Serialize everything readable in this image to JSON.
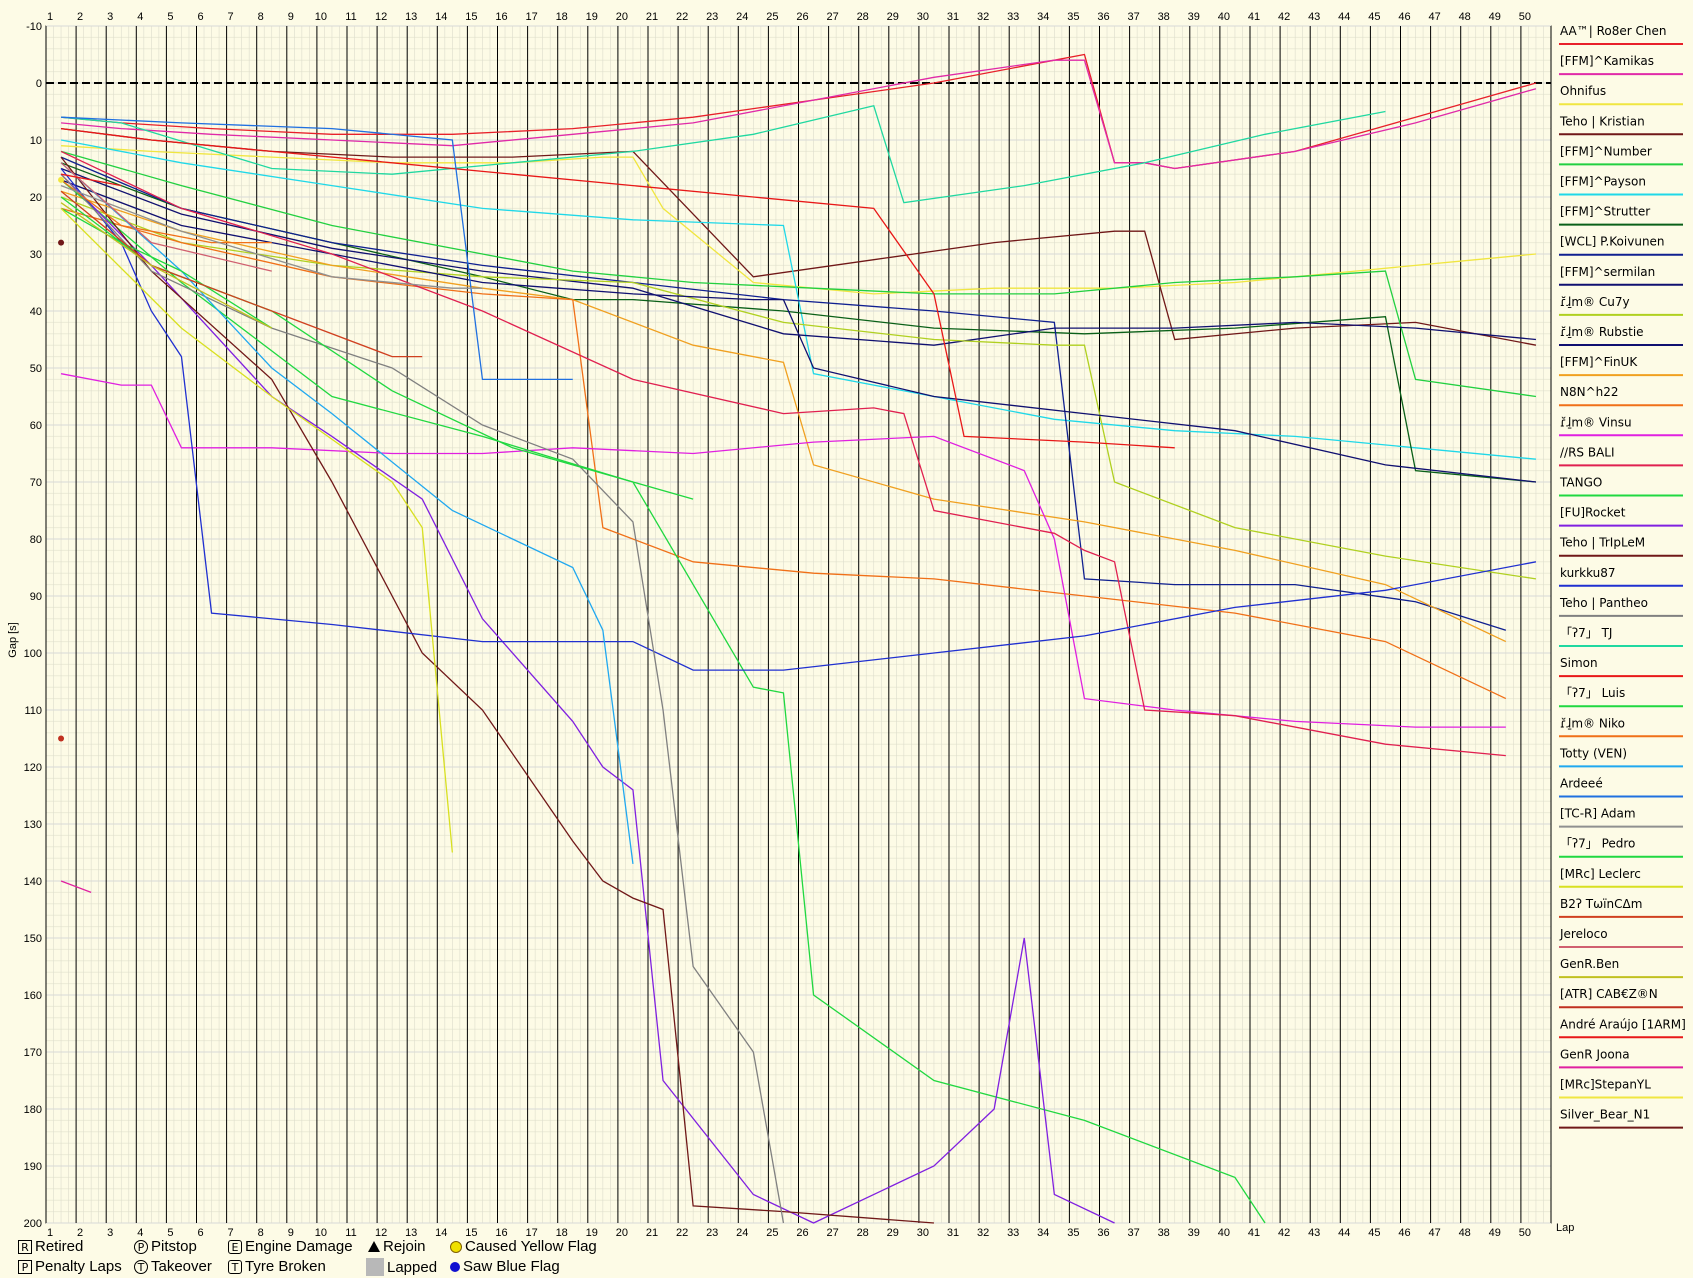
{
  "chart_data": {
    "type": "line",
    "title": "",
    "xlabel": "Lap",
    "ylabel": "Gap [s]",
    "xlim": [
      1,
      50
    ],
    "ylim": [
      -10,
      200
    ],
    "y_inverted": true,
    "x_ticks": [
      "1",
      "2",
      "3",
      "4",
      "5",
      "6",
      "7",
      "8",
      "9",
      "10",
      "11",
      "12",
      "13",
      "14",
      "15",
      "16",
      "17",
      "18",
      "19",
      "20",
      "21",
      "22",
      "23",
      "24",
      "25",
      "26",
      "27",
      "28",
      "29",
      "30",
      "31",
      "32",
      "33",
      "34",
      "35",
      "36",
      "37",
      "38",
      "39",
      "40",
      "41",
      "42",
      "43",
      "44",
      "45",
      "46",
      "47",
      "48",
      "49",
      "50"
    ],
    "y_ticks": [
      "-10",
      "0",
      "10",
      "20",
      "30",
      "40",
      "50",
      "60",
      "70",
      "80",
      "90",
      "100",
      "110",
      "120",
      "130",
      "140",
      "150",
      "160",
      "170",
      "180",
      "190",
      "200"
    ],
    "grid": true,
    "legend_position": "right",
    "series": [
      {
        "name": "AA™| Ro8er Chen",
        "color": "#e8202a",
        "x": [
          1,
          3,
          6,
          10,
          14,
          18,
          22,
          26,
          30,
          34,
          35,
          36,
          37,
          38,
          42,
          46,
          50
        ],
        "y": [
          6,
          7,
          8,
          9,
          9,
          8,
          6,
          3,
          0,
          -4,
          -5,
          14,
          14,
          15,
          12,
          6,
          0
        ]
      },
      {
        "name": "[FFM]^Kamikas",
        "color": "#e02aa8",
        "x": [
          1,
          3,
          6,
          10,
          14,
          18,
          22,
          26,
          30,
          34,
          35,
          36,
          37,
          38,
          42,
          46,
          50
        ],
        "y": [
          7,
          8,
          9,
          10,
          11,
          9,
          7,
          3,
          -1,
          -4,
          -4,
          14,
          14,
          15,
          12,
          7,
          1
        ]
      },
      {
        "name": "Ohnifus",
        "color": "#f0e640",
        "x": [
          1,
          4,
          8,
          12,
          16,
          19,
          20,
          21,
          24,
          28,
          32,
          36,
          40,
          44,
          48,
          50
        ],
        "y": [
          11,
          12,
          13,
          14,
          14,
          13,
          13,
          22,
          35,
          37,
          36,
          36,
          35,
          33,
          31,
          30
        ]
      },
      {
        "name": "Teho | Kristian",
        "color": "#701818",
        "x": [
          1,
          4,
          8,
          12,
          16,
          20,
          24,
          28,
          32,
          36,
          37,
          38,
          42,
          46,
          50
        ],
        "y": [
          8,
          10,
          12,
          13,
          13,
          12,
          34,
          31,
          28,
          26,
          26,
          45,
          43,
          42,
          46
        ]
      },
      {
        "name": "[FFM]^Number",
        "color": "#22d040",
        "x": [
          1,
          5,
          10,
          15,
          18,
          22,
          26,
          30,
          34,
          38,
          42,
          45,
          46,
          50
        ],
        "y": [
          12,
          18,
          25,
          30,
          33,
          35,
          36,
          37,
          37,
          35,
          34,
          33,
          52,
          55
        ]
      },
      {
        "name": "[FFM]^Payson",
        "color": "#20d8e8",
        "x": [
          1,
          5,
          10,
          15,
          20,
          25,
          26,
          30,
          34,
          38,
          42,
          46,
          50
        ],
        "y": [
          10,
          14,
          18,
          22,
          24,
          25,
          51,
          55,
          59,
          61,
          62,
          64,
          66
        ]
      },
      {
        "name": "[FFM]^Strutter",
        "color": "#0a6018",
        "x": [
          1,
          5,
          10,
          15,
          18,
          20,
          25,
          30,
          35,
          40,
          45,
          46,
          50
        ],
        "y": [
          14,
          22,
          28,
          34,
          38,
          38,
          40,
          43,
          44,
          43,
          41,
          68,
          70
        ]
      },
      {
        "name": "[WCL] P.Koivunen",
        "color": "#102090",
        "x": [
          1,
          5,
          10,
          15,
          20,
          25,
          30,
          34,
          35,
          38,
          42,
          46,
          49
        ],
        "y": [
          13,
          22,
          28,
          32,
          35,
          38,
          40,
          42,
          87,
          88,
          88,
          91,
          96
        ]
      },
      {
        "name": "[FFM]^sermilan",
        "color": "#101070",
        "x": [
          1,
          5,
          10,
          15,
          20,
          25,
          30,
          34,
          38,
          42,
          46,
          50
        ],
        "y": [
          15,
          23,
          29,
          33,
          36,
          44,
          46,
          43,
          43,
          42,
          43,
          45
        ]
      },
      {
        "name": "ɾ̆ɺ̱m® Cu7y",
        "color": "#b0d020",
        "x": [
          1,
          5,
          10,
          15,
          20,
          25,
          30,
          34,
          35,
          36,
          40,
          45,
          50
        ],
        "y": [
          20,
          28,
          32,
          34,
          35,
          42,
          45,
          46,
          46,
          70,
          78,
          83,
          87
        ]
      },
      {
        "name": "ɾ̆ɺ̱m® Rubstie",
        "color": "#101070",
        "x": [
          1,
          5,
          10,
          15,
          20,
          24,
          25,
          26,
          30,
          35,
          40,
          45,
          50
        ],
        "y": [
          17,
          25,
          30,
          35,
          37,
          38,
          38,
          50,
          55,
          58,
          61,
          67,
          70
        ]
      },
      {
        "name": "[FFM]^FinUK",
        "color": "#f0a020",
        "x": [
          1,
          5,
          10,
          15,
          18,
          22,
          25,
          26,
          30,
          35,
          40,
          45,
          49
        ],
        "y": [
          19,
          26,
          32,
          36,
          38,
          46,
          49,
          67,
          73,
          77,
          82,
          88,
          98
        ]
      },
      {
        "name": "N8N^h22",
        "color": "#f07018",
        "x": [
          1,
          5,
          10,
          15,
          18,
          19,
          22,
          26,
          30,
          35,
          40,
          45,
          49
        ],
        "y": [
          22,
          28,
          34,
          37,
          38,
          78,
          84,
          86,
          87,
          90,
          93,
          98,
          108
        ]
      },
      {
        "name": "ɾ̆ɺ̱m® Vinsu",
        "color": "#e020e0",
        "x": [
          1,
          3,
          4,
          5,
          8,
          12,
          15,
          18,
          22,
          26,
          30,
          33,
          34,
          35,
          38,
          42,
          46,
          49
        ],
        "y": [
          51,
          53,
          53,
          64,
          64,
          65,
          65,
          64,
          65,
          63,
          62,
          68,
          80,
          108,
          110,
          112,
          113,
          113
        ]
      },
      {
        "name": "//RS BALI",
        "color": "#e02050",
        "x": [
          1,
          5,
          10,
          15,
          20,
          25,
          28,
          29,
          30,
          34,
          35,
          36,
          37,
          40,
          45,
          49
        ],
        "y": [
          12,
          22,
          30,
          40,
          52,
          58,
          57,
          58,
          75,
          79,
          82,
          84,
          110,
          111,
          116,
          118
        ]
      },
      {
        "name": "TANGO",
        "color": "#20d840",
        "x": [
          1,
          5,
          10,
          15,
          20,
          24,
          25,
          26,
          30,
          35,
          40,
          41
        ],
        "y": [
          17,
          35,
          55,
          62,
          70,
          106,
          107,
          160,
          175,
          182,
          192,
          200
        ]
      },
      {
        "name": "[FU]Rocket",
        "color": "#8020e0",
        "x": [
          1,
          4,
          8,
          10,
          13,
          15,
          18,
          19,
          20,
          21,
          24,
          26,
          30,
          32,
          33,
          34,
          36
        ],
        "y": [
          16,
          32,
          55,
          62,
          73,
          94,
          112,
          120,
          124,
          175,
          195,
          200,
          190,
          180,
          150,
          195,
          200
        ]
      },
      {
        "name": "Teho | TrIpLeM",
        "color": "#701818",
        "x": [
          1,
          4,
          8,
          10,
          13,
          15,
          18,
          19,
          20,
          21,
          22,
          25,
          30
        ],
        "y": [
          13,
          33,
          52,
          70,
          100,
          110,
          133,
          140,
          143,
          145,
          197,
          198,
          200
        ]
      },
      {
        "name": "kurkku87",
        "color": "#2030d0",
        "x": [
          1,
          3,
          4,
          5,
          6,
          10,
          15,
          20,
          22,
          25,
          30,
          35,
          40,
          45,
          50
        ],
        "y": [
          15,
          28,
          40,
          48,
          93,
          95,
          98,
          98,
          103,
          103,
          100,
          97,
          92,
          89,
          84
        ]
      },
      {
        "name": "Teho | Pantheo",
        "color": "#808080",
        "x": [
          1,
          4,
          8,
          12,
          15,
          18,
          20,
          21,
          22,
          24,
          25
        ],
        "y": [
          16,
          33,
          43,
          50,
          60,
          66,
          77,
          110,
          155,
          170,
          200
        ]
      },
      {
        "name": "「ʔ7」 TJ",
        "color": "#20d8a0",
        "x": [
          1,
          3,
          8,
          12,
          16,
          20,
          24,
          28,
          29,
          33,
          37,
          41,
          45
        ],
        "y": [
          6,
          7,
          15,
          16,
          14,
          12,
          9,
          4,
          21,
          18,
          14,
          9,
          5
        ]
      },
      {
        "name": "Simon",
        "color": "#e81818",
        "x": [
          1,
          4,
          8,
          12,
          16,
          20,
          24,
          28,
          30,
          31,
          35,
          38
        ],
        "y": [
          8,
          10,
          12,
          14,
          16,
          18,
          20,
          22,
          37,
          62,
          63,
          64
        ]
      },
      {
        "name": "「ʔ7」 Luis",
        "color": "#20d840",
        "x": [
          1,
          4,
          8,
          12,
          16,
          20,
          22
        ],
        "y": [
          20,
          32,
          40,
          54,
          64,
          70,
          73
        ]
      },
      {
        "name": "ɾ̆ɺ̱m® Niko",
        "color": "#f07018",
        "x": [
          1,
          3,
          6,
          8
        ],
        "y": [
          17,
          25,
          28,
          28
        ]
      },
      {
        "name": "Totty (VEN)",
        "color": "#20a8f0",
        "x": [
          1,
          5,
          8,
          10,
          14,
          18,
          19,
          20
        ],
        "y": [
          14,
          33,
          50,
          58,
          75,
          85,
          96,
          137
        ]
      },
      {
        "name": "Ardeeé",
        "color": "#2070e0",
        "x": [
          1,
          5,
          10,
          14,
          15,
          18
        ],
        "y": [
          6,
          7,
          8,
          10,
          52,
          52
        ]
      },
      {
        "name": "[TC-R] Adam",
        "color": "#909090",
        "x": [
          1,
          5,
          10,
          14,
          15
        ],
        "y": [
          18,
          26,
          34,
          36,
          36
        ]
      },
      {
        "name": "「ʔ7」 Pedro",
        "color": "#20d840",
        "x": [
          1,
          3,
          5,
          8
        ],
        "y": [
          22,
          28,
          33,
          43
        ]
      },
      {
        "name": "[MRc] Leclerc",
        "color": "#d8e020",
        "x": [
          1,
          5,
          8,
          12,
          13,
          14
        ],
        "y": [
          22,
          43,
          55,
          70,
          78,
          135
        ]
      },
      {
        "name": "B2ʔ TωïnCΔm",
        "color": "#d04020",
        "x": [
          1,
          4,
          8,
          12,
          13
        ],
        "y": [
          19,
          32,
          40,
          48,
          48
        ]
      },
      {
        "name": "Jereloco",
        "color": "#d06070",
        "x": [
          1,
          4,
          8
        ],
        "y": [
          14,
          28,
          33
        ]
      },
      {
        "name": "GenR.Ben",
        "color": "#c0c020",
        "x": [
          1,
          4,
          8
        ],
        "y": [
          21,
          32,
          43
        ]
      },
      {
        "name": "[ATR] CAB€Z®N",
        "color": "#c03020",
        "x": [
          1
        ],
        "y": [
          115
        ]
      },
      {
        "name": "André Araújo [1ARM]",
        "color": "#e81818",
        "x": [
          1,
          3
        ],
        "y": [
          16,
          18
        ]
      },
      {
        "name": "GenR Joona",
        "color": "#e020a0",
        "x": [
          1,
          2
        ],
        "y": [
          140,
          142
        ]
      },
      {
        "name": "[MRc]StepanYL",
        "color": "#f0e640",
        "x": [
          1
        ],
        "y": [
          17
        ]
      },
      {
        "name": "Silver_Bear_N1",
        "color": "#701818",
        "x": [
          1
        ],
        "y": [
          28
        ]
      }
    ]
  },
  "key": {
    "retired": "Retired",
    "penalty": "Penalty Laps",
    "pitstop": "Pitstop",
    "takeover": "Takeover",
    "engine": "Engine Damage",
    "tyre": "Tyre Broken",
    "rejoin": "Rejoin",
    "lapped": "Lapped",
    "yellow": "Caused Yellow Flag",
    "blue": "Saw Blue Flag",
    "sym_r": "R",
    "sym_p": "P",
    "sym_t": "T",
    "sym_e": "E"
  }
}
